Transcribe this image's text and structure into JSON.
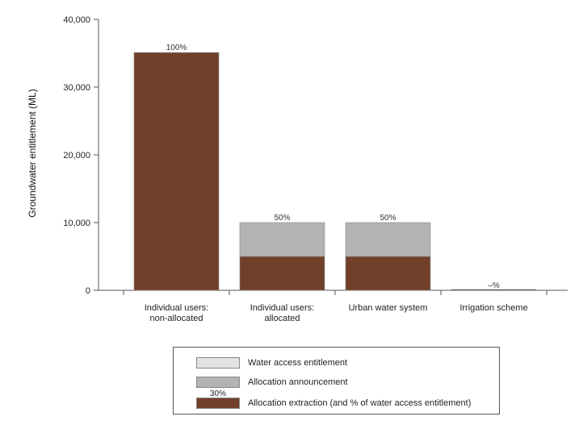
{
  "chart_data": {
    "type": "bar",
    "stacked": true,
    "categories": [
      [
        "Individual users:",
        "non-allocated"
      ],
      [
        "Individual users:",
        "allocated"
      ],
      [
        "Urban water system"
      ],
      [
        "Irrigation scheme"
      ]
    ],
    "series": [
      {
        "name": "Allocation extraction (and % of water access entitlement)",
        "values": [
          35100,
          5000,
          5000,
          0
        ],
        "color": "#70402a"
      },
      {
        "name": "Allocation announcement",
        "values": [
          0,
          5000,
          5000,
          0
        ],
        "color": "#b3b3b3"
      },
      {
        "name": "Water access entitlement",
        "values": [
          0,
          0,
          0,
          0
        ],
        "color": "#e3e3e3"
      }
    ],
    "bar_labels": [
      "100%",
      "50%",
      "50%",
      "–%"
    ],
    "ylabel": "Groundwater entitlement (ML)",
    "ylim": [
      0,
      40000
    ],
    "yticks": [
      0,
      10000,
      20000,
      30000,
      40000
    ],
    "ytick_labels": [
      "0",
      "10,000",
      "20,000",
      "30,000",
      "40,000"
    ],
    "grid": false,
    "legend_position": "bottom"
  },
  "legend": {
    "items": [
      {
        "label": "Water access entitlement",
        "color": "#e3e3e3"
      },
      {
        "label": "Allocation announcement",
        "color": "#b3b3b3"
      },
      {
        "label": "Allocation extraction (and % of water access entitlement)",
        "color": "#70402a"
      }
    ],
    "note": "30%"
  }
}
